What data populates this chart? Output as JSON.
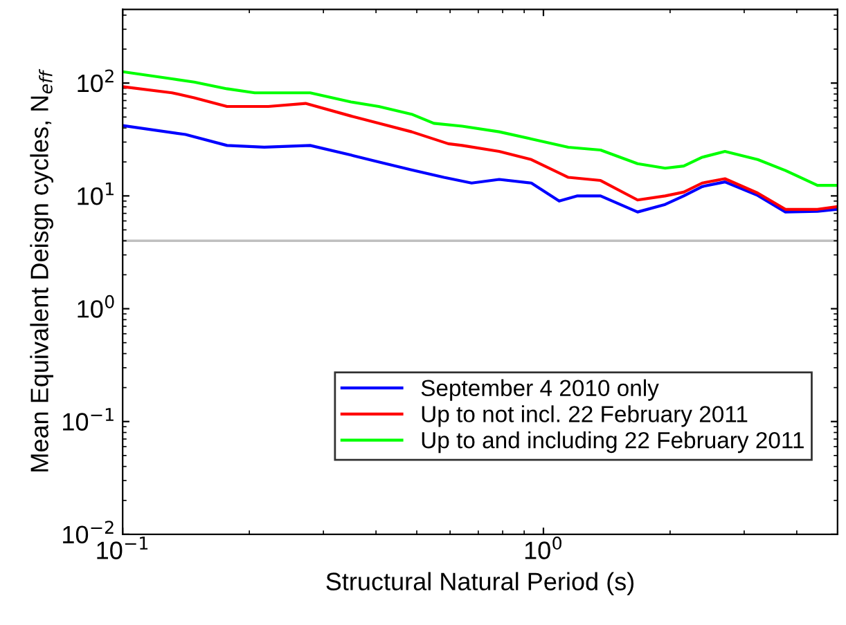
{
  "chart_data": {
    "type": "line",
    "xlabel": "Structural Natural Period (s)",
    "ylabel": "Mean Equivalent Deisgn cycles, N$_{eff}$",
    "log": "xy",
    "xlim": [
      0.1,
      5
    ],
    "ylim": [
      0.01,
      450
    ],
    "xticks": [
      {
        "value": 0.1,
        "label": "10$^{−1}$"
      },
      {
        "value": 1,
        "label": "10$^{0}$"
      }
    ],
    "yticks": [
      {
        "value": 0.01,
        "label": "10$^{−2}$"
      },
      {
        "value": 0.1,
        "label": "10$^{−1}$"
      },
      {
        "value": 1,
        "label": "10$^{0}$"
      },
      {
        "value": 10,
        "label": "10$^{1}$"
      },
      {
        "value": 100,
        "label": "10$^{2}$"
      }
    ],
    "grid": false,
    "legend": "lower right",
    "line_style": "solid",
    "marker": "none",
    "ref_lines": [
      {
        "axis": "y",
        "value": 4,
        "color": "#c0c0c0"
      }
    ],
    "series": [
      {
        "name": "September 4 2010 only",
        "color": "#0000ff",
        "x": [
          0.1,
          0.141,
          0.177,
          0.217,
          0.279,
          0.349,
          0.406,
          0.486,
          0.58,
          0.675,
          0.785,
          0.936,
          1.09,
          1.205,
          1.367,
          1.674,
          1.947,
          2.155,
          2.384,
          2.7,
          3.23,
          3.76,
          4.48,
          4.96
        ],
        "values": [
          42,
          35,
          28,
          27,
          28,
          23,
          20,
          17,
          14.6,
          13,
          14,
          13,
          9.0,
          10,
          10,
          7.2,
          8.4,
          10,
          12.1,
          13.3,
          10.1,
          7.2,
          7.3,
          7.6
        ]
      },
      {
        "name": "Up to not incl. 22 February 2011",
        "color": "#ff0000",
        "x": [
          0.1,
          0.131,
          0.148,
          0.177,
          0.222,
          0.272,
          0.349,
          0.406,
          0.486,
          0.594,
          0.641,
          0.785,
          0.936,
          1.146,
          1.367,
          1.674,
          1.947,
          2.155,
          2.384,
          2.7,
          3.23,
          3.76,
          4.48,
          4.96
        ],
        "values": [
          93,
          82,
          74,
          62,
          62,
          66,
          51,
          44,
          37,
          29,
          28,
          24.8,
          21,
          14.6,
          13.7,
          9.2,
          10,
          10.8,
          13,
          14.2,
          10.6,
          7.6,
          7.6,
          8.0
        ]
      },
      {
        "name": "Up to and including 22 February 2011",
        "color": "#00ff00",
        "x": [
          0.1,
          0.131,
          0.148,
          0.177,
          0.206,
          0.279,
          0.349,
          0.406,
          0.486,
          0.549,
          0.641,
          0.785,
          0.936,
          1.146,
          1.367,
          1.674,
          1.947,
          2.155,
          2.384,
          2.7,
          3.23,
          3.76,
          4.48,
          4.96
        ],
        "values": [
          126,
          109,
          102,
          89,
          82,
          82,
          68,
          62,
          53,
          44,
          41.5,
          37,
          32,
          27,
          25.5,
          19.3,
          17.6,
          18.4,
          22,
          24.8,
          21,
          16.8,
          12.4,
          12.4
        ]
      }
    ]
  }
}
